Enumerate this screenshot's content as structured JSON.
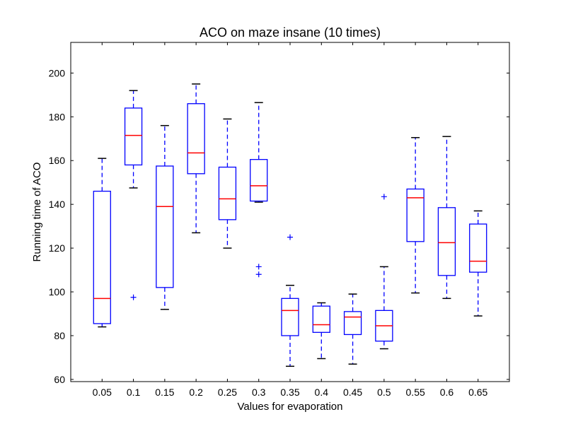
{
  "chart_data": {
    "type": "box",
    "title": "ACO on maze insane (10 times)",
    "xlabel": "Values for evaporation",
    "ylabel": "Running time of ACO",
    "ylim": [
      59,
      214
    ],
    "yticks": [
      60,
      80,
      100,
      120,
      140,
      160,
      180,
      200
    ],
    "grid": false,
    "colors": {
      "box": "#0000ff",
      "median": "#ff0000",
      "cap": "#000000",
      "outlier": "#0000ff"
    },
    "categories": [
      "0.05",
      "0.1",
      "0.15",
      "0.2",
      "0.25",
      "0.3",
      "0.35",
      "0.4",
      "0.45",
      "0.5",
      "0.55",
      "0.6",
      "0.65"
    ],
    "boxes": [
      {
        "x": "0.05",
        "whislo": 84,
        "q1": 85.5,
        "med": 97,
        "q3": 146,
        "whishi": 161,
        "fliers": []
      },
      {
        "x": "0.1",
        "whislo": 147.5,
        "q1": 158,
        "med": 171.5,
        "q3": 184,
        "whishi": 192,
        "fliers": [
          97.5
        ]
      },
      {
        "x": "0.15",
        "whislo": 92,
        "q1": 102,
        "med": 139,
        "q3": 157.5,
        "whishi": 176,
        "fliers": []
      },
      {
        "x": "0.2",
        "whislo": 127,
        "q1": 154,
        "med": 163.5,
        "q3": 186,
        "whishi": 195,
        "fliers": []
      },
      {
        "x": "0.25",
        "whislo": 120,
        "q1": 133,
        "med": 142.5,
        "q3": 157,
        "whishi": 179,
        "fliers": []
      },
      {
        "x": "0.3",
        "whislo": 141,
        "q1": 141.5,
        "med": 148.5,
        "q3": 160.5,
        "whishi": 186.5,
        "fliers": [
          111.5,
          108
        ]
      },
      {
        "x": "0.35",
        "whislo": 66,
        "q1": 80,
        "med": 91.5,
        "q3": 97,
        "whishi": 103,
        "fliers": [
          125
        ]
      },
      {
        "x": "0.4",
        "whislo": 69.5,
        "q1": 81.5,
        "med": 85,
        "q3": 93.5,
        "whishi": 95,
        "fliers": []
      },
      {
        "x": "0.45",
        "whislo": 67,
        "q1": 80.5,
        "med": 88.5,
        "q3": 91,
        "whishi": 99,
        "fliers": []
      },
      {
        "x": "0.5",
        "whislo": 74,
        "q1": 77.5,
        "med": 84.5,
        "q3": 91.5,
        "whishi": 111.5,
        "fliers": [
          143.5
        ]
      },
      {
        "x": "0.55",
        "whislo": 99.5,
        "q1": 123,
        "med": 143,
        "q3": 147,
        "whishi": 170.5,
        "fliers": []
      },
      {
        "x": "0.6",
        "whislo": 97,
        "q1": 107.5,
        "med": 122.5,
        "q3": 138.5,
        "whishi": 171,
        "fliers": []
      },
      {
        "x": "0.65",
        "whislo": 89,
        "q1": 109,
        "med": 114,
        "q3": 131,
        "whishi": 137,
        "fliers": []
      }
    ]
  }
}
